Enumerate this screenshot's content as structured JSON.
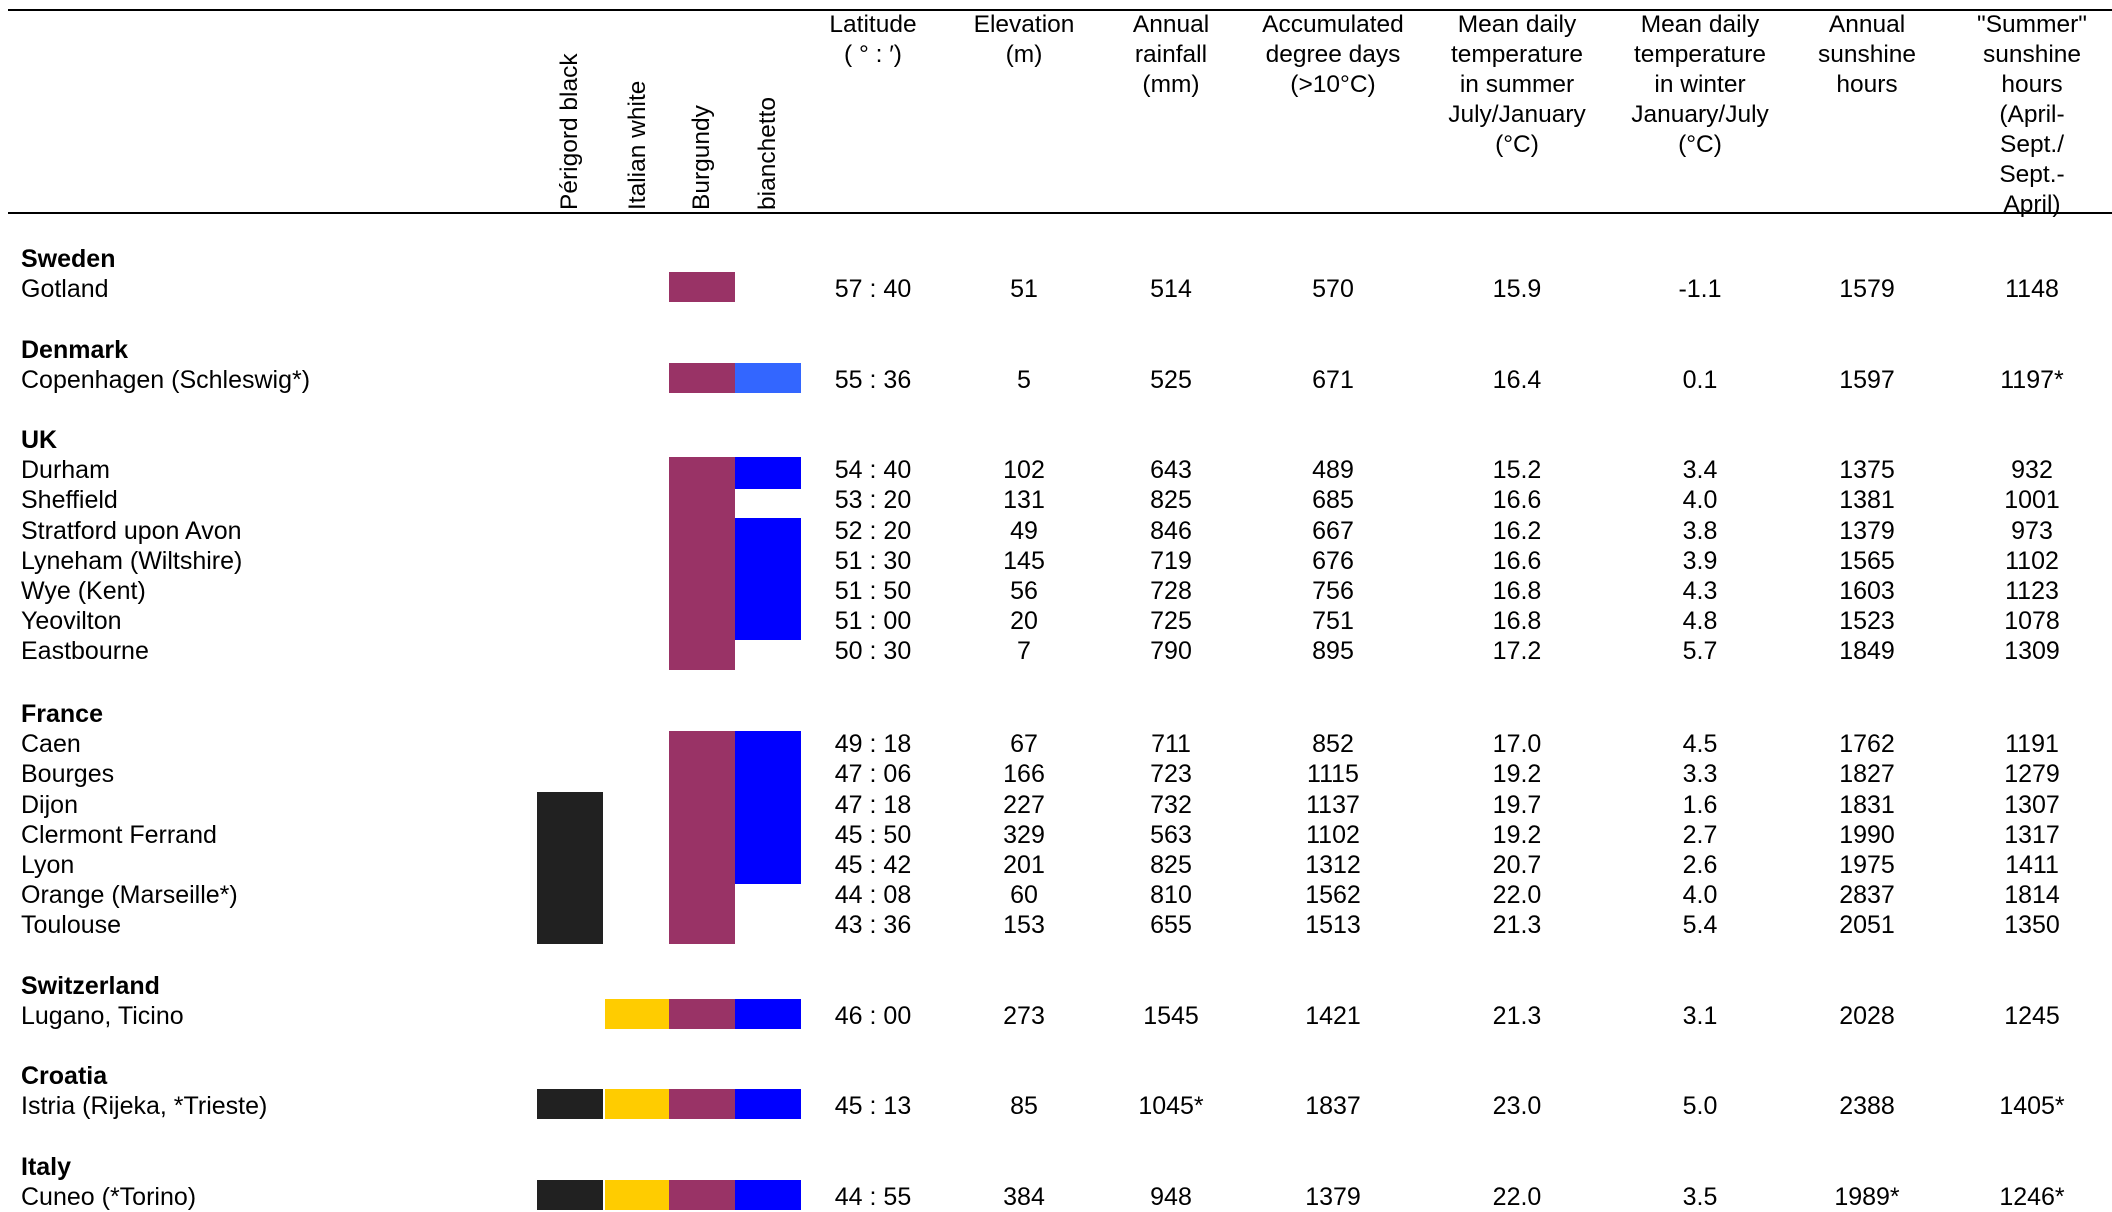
{
  "columns": {
    "varieties": [
      {
        "label": "Périgord black",
        "color": "#212121",
        "name": "perigord-black"
      },
      {
        "label": "Italian white",
        "color": "#ffcc00",
        "name": "italian-white"
      },
      {
        "label": "Burgundy",
        "color": "#993366",
        "name": "burgundy"
      },
      {
        "label": "bianchetto",
        "color": "#0000ff",
        "name": "bianchetto"
      }
    ],
    "data": [
      {
        "key": "lat",
        "label": "Latitude\n( ° : ′)"
      },
      {
        "key": "elev",
        "label": "Elevation\n(m)"
      },
      {
        "key": "rain",
        "label": "Annual\nrainfall\n(mm)"
      },
      {
        "key": "dd",
        "label": "Accumulated\ndegree days\n(>10°C)"
      },
      {
        "key": "tsum",
        "label": "Mean daily\ntemperature\nin summer\nJuly/January\n(°C)"
      },
      {
        "key": "twin",
        "label": "Mean daily\ntemperature\nin winter\nJanuary/July\n(°C)"
      },
      {
        "key": "sun",
        "label": "Annual\nsunshine\nhours"
      },
      {
        "key": "ssun",
        "label": "\"Summer\"\nsunshine\nhours\n(April-Sept./\nSept.- April)"
      }
    ]
  },
  "groups": [
    {
      "country": "Sweden",
      "rows": [
        {
          "place": "Gotland",
          "lat": "57 : 40",
          "elev": "51",
          "rain": "514",
          "dd": "570",
          "tsum": "15.9",
          "twin": "-1.1",
          "sun": "1579",
          "ssun": "1148",
          "v": [
            false,
            false,
            true,
            false
          ]
        }
      ]
    },
    {
      "country": "Denmark",
      "rows": [
        {
          "place": "Copenhagen (Schleswig*)",
          "lat": "55 : 36",
          "elev": "5",
          "rain": "525",
          "dd": "671",
          "tsum": "16.4",
          "twin": "0.1",
          "sun": "1597",
          "ssun": "1197*",
          "v": [
            false,
            false,
            true,
            true
          ],
          "bianchetto_color": "#3366ff"
        }
      ]
    },
    {
      "country": "UK",
      "rows": [
        {
          "place": "Durham",
          "lat": "54 : 40",
          "elev": "102",
          "rain": "643",
          "dd": "489",
          "tsum": "15.2",
          "twin": "3.4",
          "sun": "1375",
          "ssun": "932",
          "v": [
            false,
            false,
            true,
            true
          ]
        },
        {
          "place": "Sheffield",
          "lat": "53 : 20",
          "elev": "131",
          "rain": "825",
          "dd": "685",
          "tsum": "16.6",
          "twin": "4.0",
          "sun": "1381",
          "ssun": "1001",
          "v": [
            false,
            false,
            true,
            false
          ]
        },
        {
          "place": "Stratford upon Avon",
          "lat": "52 : 20",
          "elev": "49",
          "rain": "846",
          "dd": "667",
          "tsum": "16.2",
          "twin": "3.8",
          "sun": "1379",
          "ssun": "973",
          "v": [
            false,
            false,
            true,
            true
          ]
        },
        {
          "place": "Lyneham (Wiltshire)",
          "lat": "51 : 30",
          "elev": "145",
          "rain": "719",
          "dd": "676",
          "tsum": "16.6",
          "twin": "3.9",
          "sun": "1565",
          "ssun": "1102",
          "v": [
            false,
            false,
            true,
            true
          ]
        },
        {
          "place": "Wye (Kent)",
          "lat": "51 : 50",
          "elev": "56",
          "rain": "728",
          "dd": "756",
          "tsum": "16.8",
          "twin": "4.3",
          "sun": "1603",
          "ssun": "1123",
          "v": [
            false,
            false,
            true,
            true
          ]
        },
        {
          "place": "Yeovilton",
          "lat": "51 : 00",
          "elev": "20",
          "rain": "725",
          "dd": "751",
          "tsum": "16.8",
          "twin": "4.8",
          "sun": "1523",
          "ssun": "1078",
          "v": [
            false,
            false,
            true,
            true
          ]
        },
        {
          "place": "Eastbourne",
          "lat": "50 : 30",
          "elev": "7",
          "rain": "790",
          "dd": "895",
          "tsum": "17.2",
          "twin": "5.7",
          "sun": "1849",
          "ssun": "1309",
          "v": [
            false,
            false,
            true,
            false
          ]
        }
      ]
    },
    {
      "country": "France",
      "rows": [
        {
          "place": "Caen",
          "lat": "49 : 18",
          "elev": "67",
          "rain": "711",
          "dd": "852",
          "tsum": "17.0",
          "twin": "4.5",
          "sun": "1762",
          "ssun": "1191",
          "v": [
            false,
            false,
            true,
            true
          ]
        },
        {
          "place": "Bourges",
          "lat": "47 : 06",
          "elev": "166",
          "rain": "723",
          "dd": "1115",
          "tsum": "19.2",
          "twin": "3.3",
          "sun": "1827",
          "ssun": "1279",
          "v": [
            false,
            false,
            true,
            true
          ]
        },
        {
          "place": "Dijon",
          "lat": "47 : 18",
          "elev": "227",
          "rain": "732",
          "dd": "1137",
          "tsum": "19.7",
          "twin": "1.6",
          "sun": "1831",
          "ssun": "1307",
          "v": [
            true,
            false,
            true,
            true
          ]
        },
        {
          "place": "Clermont Ferrand",
          "lat": "45 : 50",
          "elev": "329",
          "rain": "563",
          "dd": "1102",
          "tsum": "19.2",
          "twin": "2.7",
          "sun": "1990",
          "ssun": "1317",
          "v": [
            true,
            false,
            true,
            true
          ]
        },
        {
          "place": "Lyon",
          "lat": "45 : 42",
          "elev": "201",
          "rain": "825",
          "dd": "1312",
          "tsum": "20.7",
          "twin": "2.6",
          "sun": "1975",
          "ssun": "1411",
          "v": [
            true,
            false,
            true,
            true
          ]
        },
        {
          "place": "Orange (Marseille*)",
          "lat": "44 : 08",
          "elev": "60",
          "rain": "810",
          "dd": "1562",
          "tsum": "22.0",
          "twin": "4.0",
          "sun": "2837",
          "ssun": "1814",
          "v": [
            true,
            false,
            true,
            false
          ]
        },
        {
          "place": "Toulouse",
          "lat": "43 : 36",
          "elev": "153",
          "rain": "655",
          "dd": "1513",
          "tsum": "21.3",
          "twin": "5.4",
          "sun": "2051",
          "ssun": "1350",
          "v": [
            true,
            false,
            true,
            false
          ]
        }
      ]
    },
    {
      "country": "Switzerland",
      "rows": [
        {
          "place": "Lugano, Ticino",
          "lat": "46 : 00",
          "elev": "273",
          "rain": "1545",
          "dd": "1421",
          "tsum": "21.3",
          "twin": "3.1",
          "sun": "2028",
          "ssun": "1245",
          "v": [
            false,
            true,
            true,
            true
          ]
        }
      ]
    },
    {
      "country": "Croatia",
      "rows": [
        {
          "place": "Istria (Rijeka, *Trieste)",
          "lat": "45 : 13",
          "elev": "85",
          "rain": "1045*",
          "dd": "1837",
          "tsum": "23.0",
          "twin": "5.0",
          "sun": "2388",
          "ssun": "1405*",
          "v": [
            true,
            true,
            true,
            true
          ]
        }
      ]
    },
    {
      "country": "Italy",
      "rows": [
        {
          "place": "Cuneo (*Torino)",
          "lat": "44 : 55",
          "elev": "384",
          "rain": "948",
          "dd": "1379",
          "tsum": "22.0",
          "twin": "3.5",
          "sun": "1989*",
          "ssun": "1246*",
          "v": [
            true,
            true,
            true,
            true
          ]
        }
      ]
    }
  ]
}
